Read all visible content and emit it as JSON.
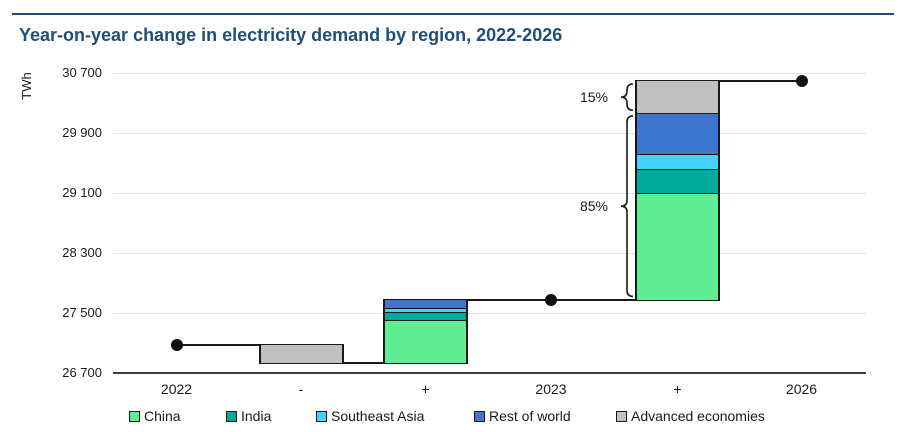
{
  "header": {
    "title": "Year-on-year change in electricity demand by region, 2022-2026"
  },
  "chart_data": {
    "type": "bar",
    "subtype": "stacked-waterfall",
    "title": "Year-on-year change in electricity demand by region, 2022-2026",
    "ylabel": "TWh",
    "xlabel": "",
    "unit": "TWh",
    "ylim": [
      26700,
      30700
    ],
    "grid": "horizontal",
    "legend_position": "bottom",
    "categories": [
      "2022",
      "-",
      "+",
      "2023",
      "+",
      "2026"
    ],
    "y_ticks": [
      {
        "value": 26700,
        "label": "26 700"
      },
      {
        "value": 27500,
        "label": "27 500"
      },
      {
        "value": 28300,
        "label": "28 300"
      },
      {
        "value": 29100,
        "label": "29 100"
      },
      {
        "value": 29900,
        "label": "29 900"
      },
      {
        "value": 30700,
        "label": "30 700"
      }
    ],
    "levels": [
      {
        "category": "2022",
        "value": 27070
      },
      {
        "category": "2023",
        "value": 27680
      },
      {
        "category": "2026",
        "value": 30595
      }
    ],
    "bars": [
      {
        "cat_index": 1,
        "category": "-",
        "direction": "decrease",
        "base": 26840,
        "segments": [
          {
            "region": "Advanced economies",
            "value": 230
          }
        ]
      },
      {
        "cat_index": 2,
        "category": "+",
        "direction": "increase",
        "base": 26840,
        "segments": [
          {
            "region": "China",
            "value": 570
          },
          {
            "region": "India",
            "value": 105
          },
          {
            "region": "Southeast Asia",
            "value": 55
          },
          {
            "region": "Rest of world",
            "value": 110
          }
        ]
      },
      {
        "cat_index": 4,
        "category": "+",
        "direction": "increase",
        "base": 27680,
        "segments": [
          {
            "region": "China",
            "value": 1415
          },
          {
            "region": "India",
            "value": 330
          },
          {
            "region": "Southeast Asia",
            "value": 195
          },
          {
            "region": "Rest of world",
            "value": 545
          },
          {
            "region": "Advanced economies",
            "value": 430
          }
        ]
      }
    ],
    "dots": [
      {
        "cat_index": 0,
        "value": 27070
      },
      {
        "cat_index": 3,
        "value": 27680
      },
      {
        "cat_index": 5,
        "value": 30595
      }
    ],
    "connectors": [
      {
        "value": 27070,
        "from_cat": 0,
        "from_edge": "center",
        "to_cat": 1,
        "to_edge": "left"
      },
      {
        "value": 26840,
        "from_cat": 1,
        "from_edge": "right",
        "to_cat": 2,
        "to_edge": "left"
      },
      {
        "value": 27680,
        "from_cat": 2,
        "from_edge": "right",
        "to_cat": 4,
        "to_edge": "left"
      },
      {
        "value": 30595,
        "from_cat": 4,
        "from_edge": "right",
        "to_cat": 5,
        "to_edge": "center"
      }
    ],
    "annotations": [
      {
        "label": "15%",
        "from_value": 30165,
        "to_value": 30595
      },
      {
        "label": "85%",
        "from_value": 27680,
        "to_value": 30165
      }
    ],
    "legend": [
      {
        "label": "China",
        "color": "#5FEE91"
      },
      {
        "label": "India",
        "color": "#00A99C"
      },
      {
        "label": "Southeast Asia",
        "color": "#47D1FE"
      },
      {
        "label": "Rest of world",
        "color": "#3E76CF"
      },
      {
        "label": "Advanced economies",
        "color": "#C1C1C1"
      }
    ],
    "colors": {
      "title": "#1F4E79",
      "top_rule": "#1F4E79",
      "bar_border": "#141A1E",
      "line": "#1A1A1A",
      "grid": "#E5E5E5",
      "axis": "#404040"
    }
  }
}
